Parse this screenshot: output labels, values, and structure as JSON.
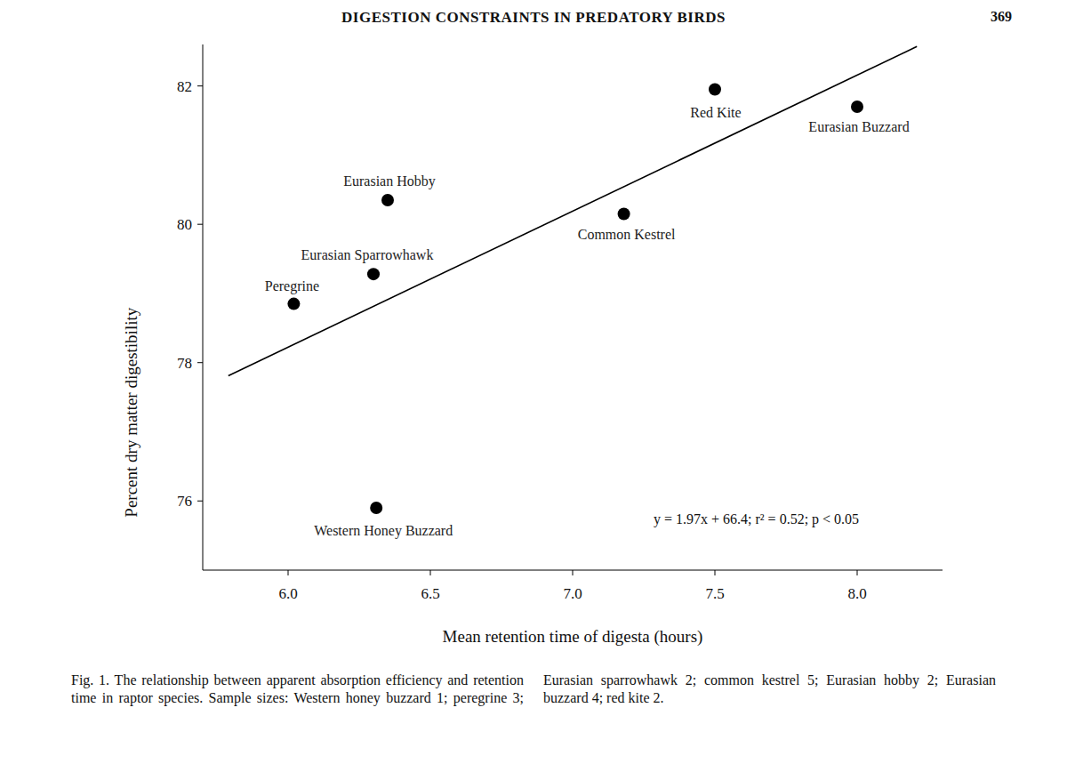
{
  "chart_data": {
    "type": "scatter",
    "title": "DIGESTION CONSTRAINTS IN PREDATORY BIRDS",
    "page_number": "369",
    "x_label": "Mean retention time of digesta (hours)",
    "y_label": "Percent dry matter digestibility",
    "labels": [
      "Peregrine",
      "Eurasian Sparrowhawk",
      "Eurasian Hobby",
      "Western Honey Buzzard",
      "Common Kestrel",
      "Red Kite",
      "Eurasian Buzzard"
    ],
    "x": [
      6.02,
      6.3,
      6.35,
      6.31,
      7.18,
      7.5,
      8.0
    ],
    "values": [
      78.85,
      79.28,
      80.35,
      75.9,
      80.15,
      81.95,
      81.7
    ],
    "color": "#000000",
    "marker": "circle",
    "fit_line": {
      "x": [
        5.79,
        8.21
      ],
      "y": [
        77.81,
        82.57
      ],
      "color": "#000000",
      "line_style": "solid"
    },
    "annotations": [
      "y = 1.97x + 66.4; r² = 0.52; p < 0.05"
    ],
    "xlim": [
      5.7,
      8.3
    ],
    "xticks": [
      {
        "value": 6,
        "label": "6.0"
      },
      {
        "value": 6.5,
        "label": "6.5"
      },
      {
        "value": 7,
        "label": "7.0"
      },
      {
        "value": 7.5,
        "label": "7.5"
      },
      {
        "value": 8,
        "label": "8.0"
      }
    ],
    "ylim": [
      75,
      82.6
    ],
    "yticks": [
      76,
      78,
      80,
      82
    ],
    "grid": false,
    "caption": "Fig. 1. The relationship between apparent absorption efficiency and retention time in raptor species. Sample sizes: Western honey buzzard 1; peregrine 3; Eurasian sparrowhawk 2; common kestrel 5; Eurasian hobby 2; Eurasian buzzard 4; red kite 2."
  }
}
